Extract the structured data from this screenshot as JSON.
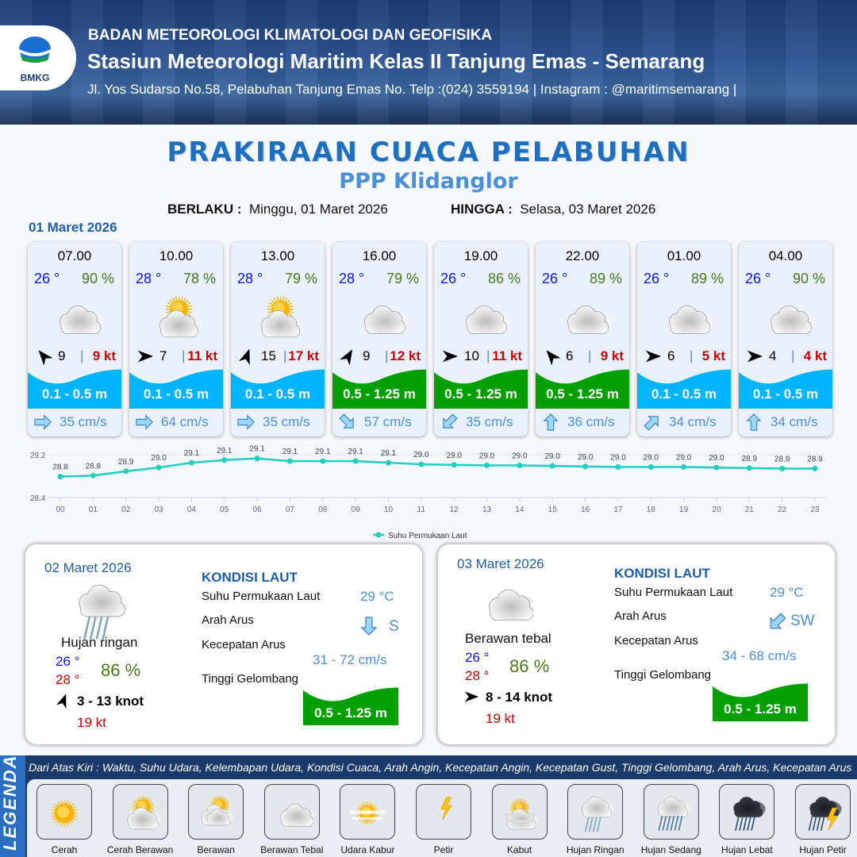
{
  "header": {
    "agency": "BADAN METEOROLOGI KLIMATOLOGI DAN GEOFISIKA",
    "station": "Stasiun Meteorologi Maritim Kelas II Tanjung Emas - Semarang",
    "address": "Jl. Yos Sudarso No.58, Pelabuhan Tanjung Emas No. Telp :(024) 3559194 | Instagram : @maritimsemarang |",
    "logo_text": "BMKG"
  },
  "title": "PRAKIRAAN CUACA PELABUHAN",
  "subtitle": "PPP Klidanglor",
  "validity": {
    "from_label": "BERLAKU :",
    "from_value": "Minggu, 01 Maret 2026",
    "to_label": "HINGGA :",
    "to_value": "Selasa, 03 Maret 2026"
  },
  "day1": {
    "date": "01 Maret 2026",
    "forecasts": [
      {
        "time": "07.00",
        "temp": "26 °",
        "humidity": "90 %",
        "weather": "berawan-tebal",
        "wind_arrow_deg": 320,
        "wind": "9",
        "gust": "9 kt",
        "wave": "0.1 - 0.5 m",
        "wave_color": "#00b4ff",
        "current_arrow_deg": 90,
        "current": "35 cm/s"
      },
      {
        "time": "10.00",
        "temp": "28 °",
        "humidity": "78 %",
        "weather": "cerah-berawan",
        "wind_arrow_deg": 90,
        "wind": "7",
        "gust": "11 kt",
        "wave": "0.1 - 0.5 m",
        "wave_color": "#00b4ff",
        "current_arrow_deg": 90,
        "current": "64 cm/s"
      },
      {
        "time": "13.00",
        "temp": "28 °",
        "humidity": "79 %",
        "weather": "cerah-berawan",
        "wind_arrow_deg": 20,
        "wind": "15",
        "gust": "17 kt",
        "wave": "0.1 - 0.5 m",
        "wave_color": "#00b4ff",
        "current_arrow_deg": 90,
        "current": "35 cm/s"
      },
      {
        "time": "16.00",
        "temp": "28 °",
        "humidity": "79 %",
        "weather": "berawan-tebal",
        "wind_arrow_deg": 30,
        "wind": "9",
        "gust": "12 kt",
        "wave": "0.5 - 1.25 m",
        "wave_color": "#00a000",
        "current_arrow_deg": 135,
        "current": "57 cm/s"
      },
      {
        "time": "19.00",
        "temp": "26 °",
        "humidity": "86 %",
        "weather": "berawan-tebal",
        "wind_arrow_deg": 90,
        "wind": "10",
        "gust": "11 kt",
        "wave": "0.5 - 1.25 m",
        "wave_color": "#00a000",
        "current_arrow_deg": 225,
        "current": "35 cm/s"
      },
      {
        "time": "22.00",
        "temp": "26 °",
        "humidity": "89 %",
        "weather": "berawan-tebal",
        "wind_arrow_deg": 320,
        "wind": "6",
        "gust": "9 kt",
        "wave": "0.5 - 1.25 m",
        "wave_color": "#00a000",
        "current_arrow_deg": 0,
        "current": "36 cm/s"
      },
      {
        "time": "01.00",
        "temp": "26 °",
        "humidity": "89 %",
        "weather": "berawan-tebal",
        "wind_arrow_deg": 90,
        "wind": "6",
        "gust": "5 kt",
        "wave": "0.1 - 0.5 m",
        "wave_color": "#00b4ff",
        "current_arrow_deg": 45,
        "current": "34 cm/s"
      },
      {
        "time": "04.00",
        "temp": "26 °",
        "humidity": "90 %",
        "weather": "berawan-tebal",
        "wind_arrow_deg": 90,
        "wind": "4",
        "gust": "4 kt",
        "wave": "0.1 - 0.5 m",
        "wave_color": "#00b4ff",
        "current_arrow_deg": 0,
        "current": "34 cm/s"
      }
    ]
  },
  "chart_data": {
    "type": "line",
    "series": [
      {
        "name": "Suhu Permukaan Laut",
        "color": "#1fcfbf",
        "values": [
          28.79,
          28.81,
          28.89,
          28.96,
          29.05,
          29.1,
          29.13,
          29.08,
          29.08,
          29.08,
          29.05,
          29.02,
          29.01,
          29.0,
          29.0,
          28.99,
          28.98,
          28.97,
          28.97,
          28.97,
          28.96,
          28.95,
          28.94,
          28.94
        ],
        "labels": [
          "28.8",
          "28.8",
          "28.9",
          "29.0",
          "29.1",
          "29.1",
          "29.1",
          "29.1",
          "29.1",
          "29.1",
          "29.1",
          "29.0",
          "29.0",
          "29.0",
          "29.0",
          "29.0",
          "29.0",
          "29.0",
          "29.0",
          "29.0",
          "29.0",
          "28.9",
          "28.9",
          "28.9"
        ]
      }
    ],
    "categories": [
      "00",
      "01",
      "02",
      "03",
      "04",
      "05",
      "06",
      "07",
      "08",
      "09",
      "10",
      "11",
      "12",
      "13",
      "14",
      "15",
      "16",
      "17",
      "18",
      "19",
      "20",
      "21",
      "22",
      "23"
    ],
    "ylim": [
      28.4,
      29.2
    ],
    "yticks": [
      "29.2",
      "28.4"
    ],
    "grid": true,
    "legend_position": "bottom"
  },
  "days": [
    {
      "date": "02 Maret 2026",
      "weather": "hujan-ringan",
      "condition": "Hujan ringan",
      "tmin": "26 °",
      "tmax": "28 °",
      "humidity": "86 %",
      "wind_arrow_deg": 20,
      "wind": "3  - 13 knot",
      "gust": "19 kt",
      "sea_title": "KONDISI LAUT",
      "sst_label": "Suhu Permukaan Laut",
      "sst": "29 °C",
      "dir_label": "Arah Arus",
      "current_arrow_deg": 180,
      "dir": "S",
      "speed_label": "Kecepatan Arus",
      "speed": "31 - 72 cm/s",
      "wave_label": "Tinggi Gelombang",
      "wave": "0.5 - 1.25 m",
      "wave_color": "#00a000"
    },
    {
      "date": "03 Maret 2026",
      "weather": "berawan-tebal",
      "condition": "Berawan tebal",
      "tmin": "26 °",
      "tmax": "28 °",
      "humidity": "86 %",
      "wind_arrow_deg": 90,
      "wind": "8  - 14 knot",
      "gust": "19 kt",
      "sea_title": "KONDISI LAUT",
      "sst_label": "Suhu Permukaan Laut",
      "sst": "29 °C",
      "dir_label": "Arah Arus",
      "current_arrow_deg": 225,
      "dir": "SW",
      "speed_label": "Kecepatan Arus",
      "speed": "34 - 68 cm/s",
      "wave_label": "Tinggi Gelombang",
      "wave": "0.5 - 1.25 m",
      "wave_color": "#00a000"
    }
  ],
  "legend": {
    "title": "LEGENDA",
    "description": "Dari Atas Kiri : Waktu, Suhu Udara, Kelembapan Udara, Kondisi Cuaca, Arah Angin, Kecepatan Angin, Kecepatan Gust, Tinggi Gelombang, Arah Arus, Kecepatan Arus",
    "items": [
      {
        "label": "Cerah",
        "icon": "cerah"
      },
      {
        "label": "Cerah Berawan",
        "icon": "cerah-berawan"
      },
      {
        "label": "Berawan",
        "icon": "berawan"
      },
      {
        "label": "Berawan Tebal",
        "icon": "berawan-tebal"
      },
      {
        "label": "Udara Kabur",
        "icon": "udara-kabur"
      },
      {
        "label": "Petir",
        "icon": "petir"
      },
      {
        "label": "Kabut",
        "icon": "kabut"
      },
      {
        "label": "Hujan Ringan",
        "icon": "hujan-ringan"
      },
      {
        "label": "Hujan Sedang",
        "icon": "hujan-sedang"
      },
      {
        "label": "Hujan Lebat",
        "icon": "hujan-lebat"
      },
      {
        "label": "Hujan Petir",
        "icon": "hujan-petir"
      }
    ]
  }
}
